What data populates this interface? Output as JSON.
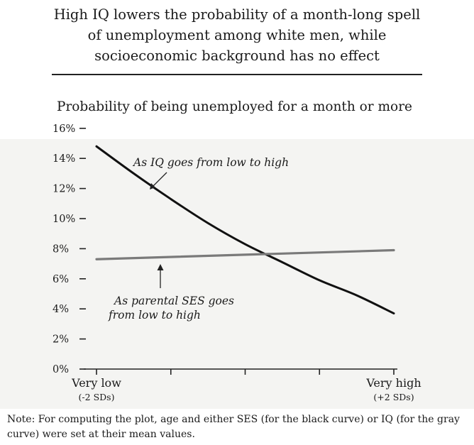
{
  "title_lines": [
    "High IQ lowers the probability of a month-long spell",
    "of unemployment among white men, while",
    "socioeconomic background has no effect"
  ],
  "note": "Note: For computing the plot, age and either SES (for the black curve) or IQ (for the gray curve) were set at their mean values.",
  "colors": {
    "iq_curve": "#111111",
    "ses_curve": "#7a7a7a",
    "plot_background": "#f4f4f2"
  },
  "chart_data": {
    "type": "line",
    "subtitle": "Probability of being unemployed for a month or more",
    "x_range": [
      -2,
      2
    ],
    "ylim": [
      0,
      16
    ],
    "y_ticks": [
      0,
      2,
      4,
      6,
      8,
      10,
      12,
      14,
      16
    ],
    "y_tick_labels": [
      "0%",
      "2%",
      "4%",
      "6%",
      "8%",
      "10%",
      "12%",
      "14%",
      "16%"
    ],
    "x_ticks": [
      -2,
      -1,
      0,
      1,
      2
    ],
    "x_tick_labels": [
      {
        "x": -2,
        "line1": "Very low",
        "line2": "(-2 SDs)"
      },
      {
        "x": 2,
        "line1": "Very high",
        "line2": "(+2 SDs)"
      }
    ],
    "series": [
      {
        "key": "iq",
        "x": [
          -2,
          -1.5,
          -1,
          -0.5,
          0,
          0.5,
          1,
          1.5,
          2
        ],
        "y": [
          14.8,
          13.0,
          11.3,
          9.7,
          8.3,
          7.1,
          5.9,
          4.9,
          3.7
        ]
      },
      {
        "key": "ses",
        "x": [
          -2,
          2
        ],
        "y": [
          7.3,
          7.9
        ]
      }
    ],
    "annotations": [
      {
        "key": "iq",
        "lines": [
          "As IQ goes from low to high"
        ]
      },
      {
        "key": "ses",
        "lines": [
          "As parental SES goes",
          "from low to high"
        ]
      }
    ],
    "grid": false
  }
}
